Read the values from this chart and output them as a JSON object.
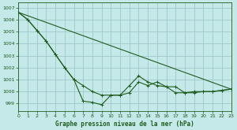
{
  "title": "Graphe pression niveau de la mer (hPa)",
  "background_color": "#c5e8e8",
  "grid_color": "#9ec8c8",
  "line_color": "#1e5c1e",
  "ylim": [
    998.4,
    1007.4
  ],
  "xlim": [
    0,
    23
  ],
  "yticks": [
    999,
    1000,
    1001,
    1002,
    1003,
    1004,
    1005,
    1006,
    1007
  ],
  "xticks": [
    0,
    1,
    2,
    3,
    4,
    5,
    6,
    7,
    8,
    9,
    10,
    11,
    12,
    13,
    14,
    15,
    16,
    17,
    18,
    19,
    20,
    21,
    22,
    23
  ],
  "series1_x": [
    0,
    1,
    2,
    3,
    4,
    5,
    6,
    7,
    8,
    9,
    10,
    11,
    12,
    13,
    14,
    15,
    16,
    17,
    18,
    19,
    20,
    21,
    22,
    23
  ],
  "series1_y": [
    1006.6,
    1006.0,
    1005.1,
    1004.2,
    1003.1,
    1002.0,
    1001.0,
    1000.5,
    1000.0,
    999.7,
    999.7,
    999.7,
    999.9,
    1000.8,
    1000.5,
    1000.8,
    1000.4,
    999.9,
    999.9,
    999.9,
    1000.0,
    1000.0,
    1000.1,
    1000.2
  ],
  "series2_x": [
    0,
    1,
    2,
    3,
    4,
    5,
    6,
    7,
    8,
    9,
    10,
    11,
    12,
    13,
    14,
    15,
    16,
    17,
    18,
    19,
    20,
    21,
    22,
    23
  ],
  "series2_y": [
    1006.6,
    1006.0,
    1005.1,
    1004.2,
    1003.1,
    1002.0,
    1001.0,
    999.2,
    999.1,
    998.9,
    999.7,
    999.7,
    1000.5,
    1001.3,
    1000.8,
    1000.5,
    1000.4,
    1000.4,
    999.9,
    1000.0,
    1000.0,
    1000.0,
    1000.1,
    1000.2
  ],
  "series3_x": [
    0,
    23
  ],
  "series3_y": [
    1006.6,
    1000.2
  ]
}
